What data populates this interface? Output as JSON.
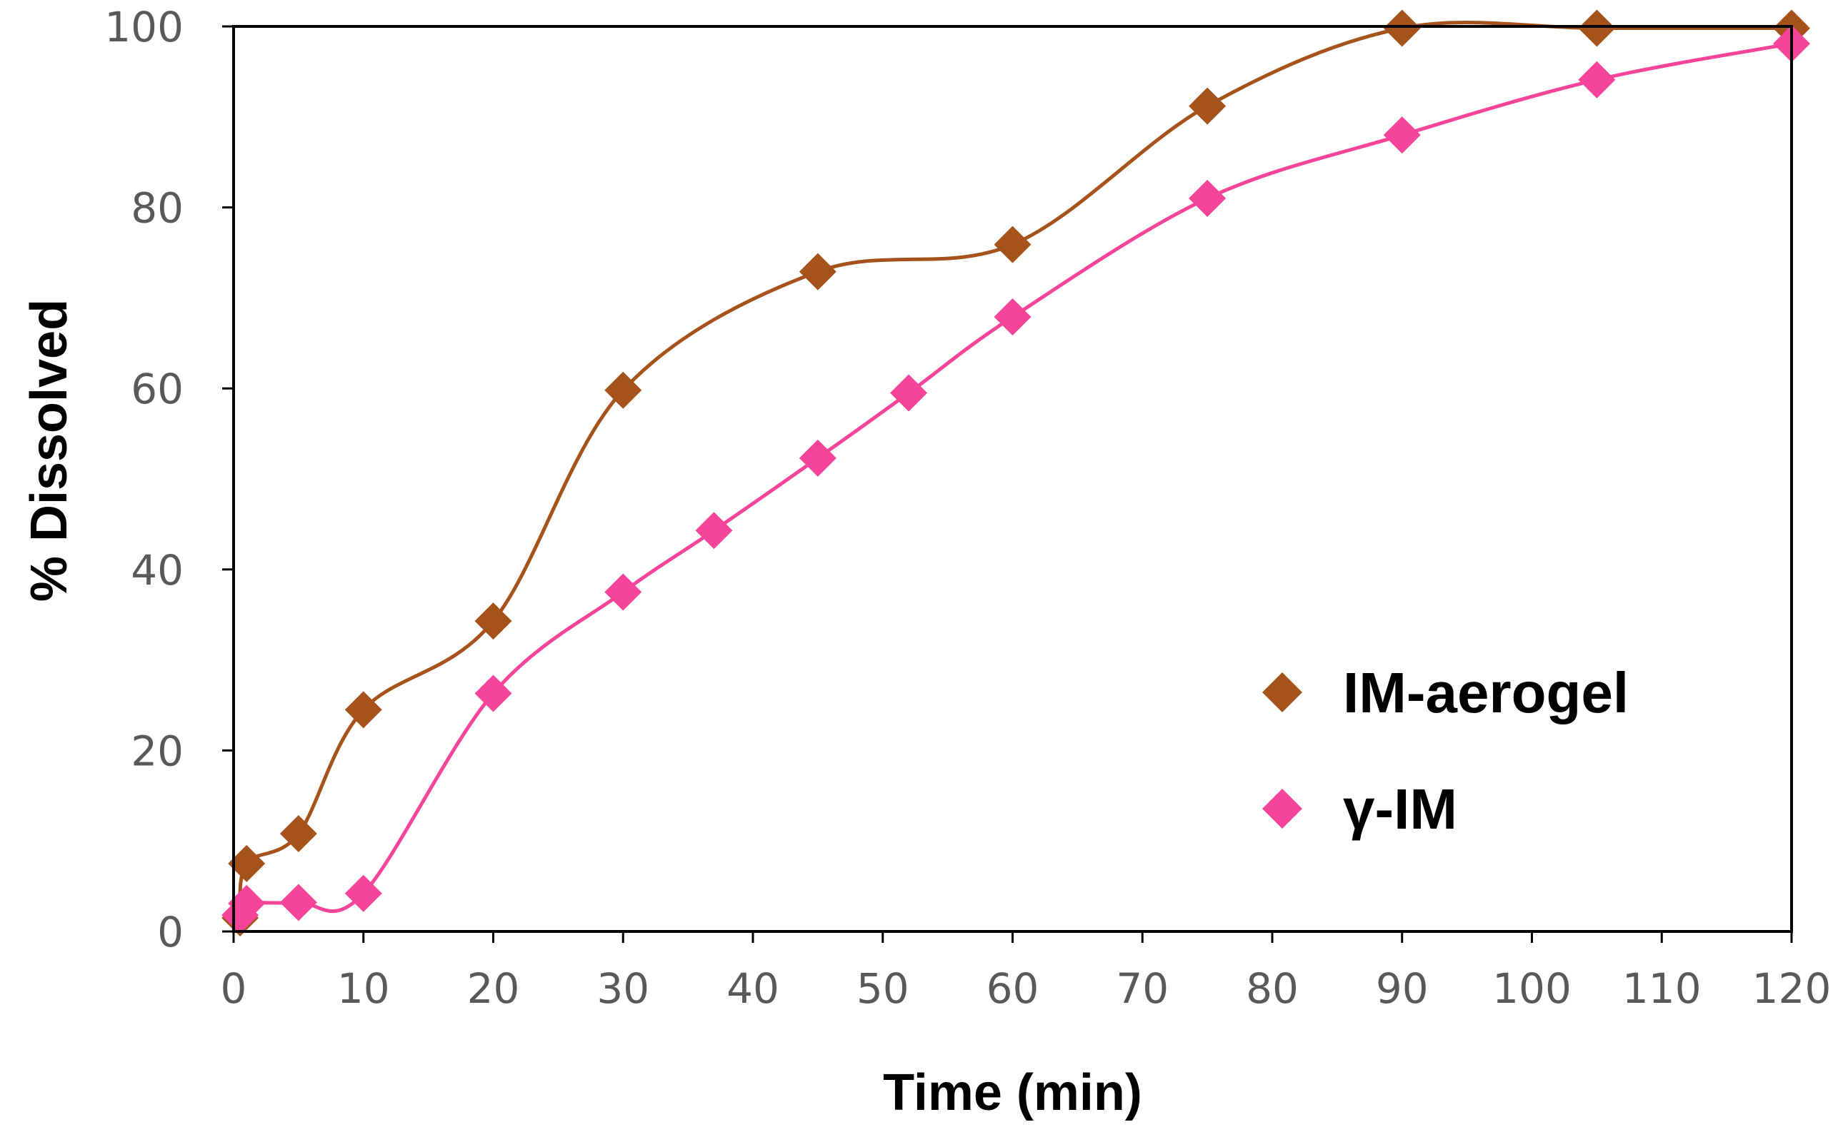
{
  "chart_data": {
    "type": "scatter",
    "title": "",
    "xlabel": "Time (min)",
    "ylabel": "% Dissolved",
    "xlim": [
      0,
      120
    ],
    "ylim": [
      0,
      100
    ],
    "xticks": [
      "0",
      "10",
      "20",
      "30",
      "40",
      "50",
      "60",
      "70",
      "80",
      "90",
      "100",
      "110",
      "120"
    ],
    "yticks": [
      "0",
      "20",
      "40",
      "60",
      "80",
      "100"
    ],
    "grid": false,
    "legend_position": "right-middle",
    "series": [
      {
        "name": "IM-aerogel",
        "color": "#A5531B",
        "x": [
          0.5,
          1,
          5,
          10,
          20,
          30,
          45,
          60,
          75,
          90,
          105,
          120
        ],
        "y": [
          1.5,
          7.5,
          10.8,
          24.5,
          34.3,
          59.8,
          72.9,
          75.9,
          91.2,
          99.8,
          99.8,
          99.8
        ]
      },
      {
        "name": "γ-IM",
        "color": "#F6449A",
        "x": [
          0.5,
          1,
          5,
          10,
          20,
          30,
          37,
          45,
          52,
          60,
          75,
          90,
          105,
          120
        ],
        "y": [
          1.8,
          3.1,
          3.2,
          4.2,
          26.3,
          37.5,
          44.3,
          52.3,
          59.5,
          67.9,
          81.0,
          88.0,
          94.1,
          98.1
        ]
      }
    ]
  }
}
